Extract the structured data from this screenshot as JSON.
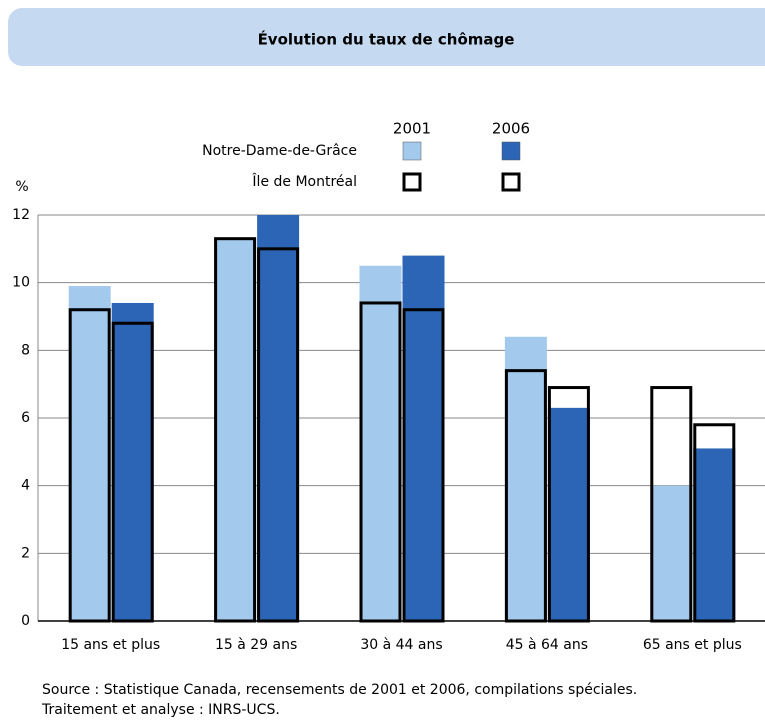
{
  "chart_data": {
    "type": "bar",
    "title": "Évolution du taux de chômage",
    "y_label": "%",
    "categories": [
      "15 ans et plus",
      "15 à 29 ans",
      "30 à 44 ans",
      "45 à 64 ans",
      "65 ans et plus"
    ],
    "series": [
      {
        "name": "Notre-Dame-de-Grâce",
        "year": "2001",
        "style": "fill",
        "color": "#a3c9ec",
        "values": [
          9.9,
          11.3,
          10.5,
          8.4,
          4.0
        ]
      },
      {
        "name": "Notre-Dame-de-Grâce",
        "year": "2006",
        "style": "fill",
        "color": "#2c65b5",
        "values": [
          9.4,
          12.0,
          10.8,
          6.3,
          5.1
        ]
      },
      {
        "name": "Île de Montréal",
        "year": "2001",
        "style": "outline",
        "color": "#000000",
        "values": [
          9.2,
          11.3,
          9.4,
          7.4,
          6.9
        ]
      },
      {
        "name": "Île de Montréal",
        "year": "2006",
        "style": "outline",
        "color": "#000000",
        "values": [
          8.8,
          11.0,
          9.2,
          6.9,
          5.8
        ]
      }
    ],
    "ylim": [
      0,
      12
    ],
    "yticks": [
      0,
      2,
      4,
      6,
      8,
      10,
      12
    ],
    "grid": true,
    "source": "Source : Statistique Canada, recensements de 2001 et 2006, compilations spéciales.",
    "credit": "Traitement et analyse : INRS-UCS."
  }
}
